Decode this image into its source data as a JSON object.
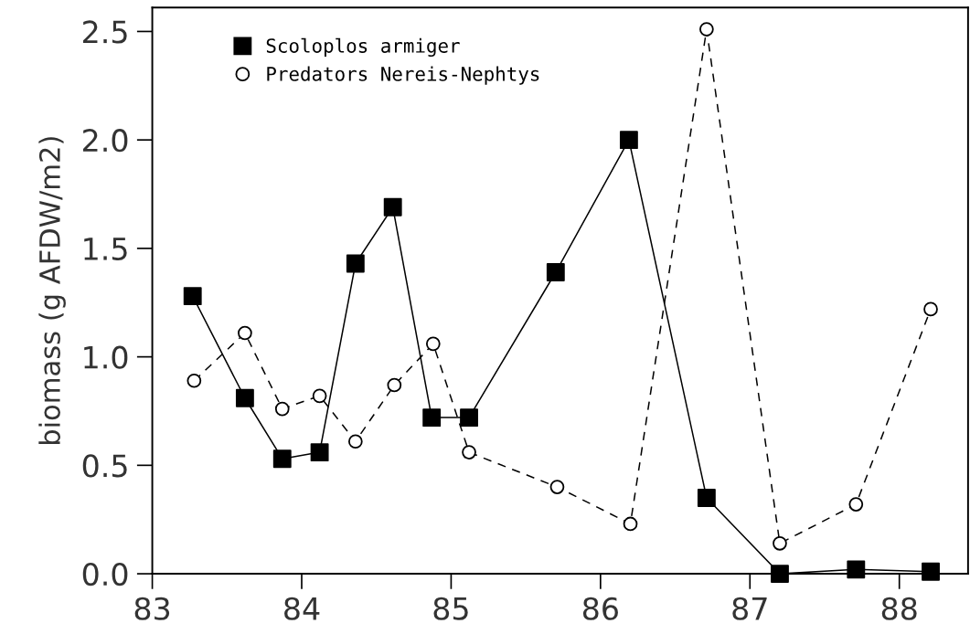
{
  "chart_data": {
    "type": "line",
    "ylabel": "biomass (g AFDW/m2)",
    "xlim": [
      83,
      88.46
    ],
    "xticks": [
      83,
      84,
      85,
      86,
      87,
      88
    ],
    "ylim": [
      0,
      2.61
    ],
    "yticks": [
      {
        "value": 0,
        "label": "0.0"
      },
      0.5,
      {
        "value": 1,
        "label": "1.0"
      },
      1.5,
      {
        "value": 2,
        "label": "2.0"
      },
      2.5
    ],
    "grid": false,
    "legend": "top left",
    "series": [
      {
        "name": "Scoloplos armiger",
        "color": "#000000",
        "marker": "square",
        "line_style": "solid",
        "x": [
          83.27,
          83.62,
          83.87,
          84.12,
          84.36,
          84.61,
          84.87,
          85.12,
          85.7,
          86.19,
          86.71,
          87.2,
          87.71,
          88.21
        ],
        "values": [
          1.28,
          0.81,
          0.53,
          0.56,
          1.43,
          1.69,
          0.72,
          0.72,
          1.39,
          2.0,
          0.35,
          0.0,
          0.02,
          0.01
        ]
      },
      {
        "name": "Predators Nereis-Nephtys",
        "color": "#000000",
        "marker": "circle",
        "line_style": "dashed",
        "x": [
          83.28,
          83.62,
          83.87,
          84.12,
          84.36,
          84.62,
          84.88,
          85.12,
          85.71,
          86.2,
          86.71,
          87.2,
          87.71,
          88.21
        ],
        "values": [
          0.89,
          1.11,
          0.76,
          0.82,
          0.61,
          0.87,
          1.06,
          0.56,
          0.4,
          0.23,
          2.51,
          0.14,
          0.32,
          1.22
        ]
      }
    ]
  }
}
